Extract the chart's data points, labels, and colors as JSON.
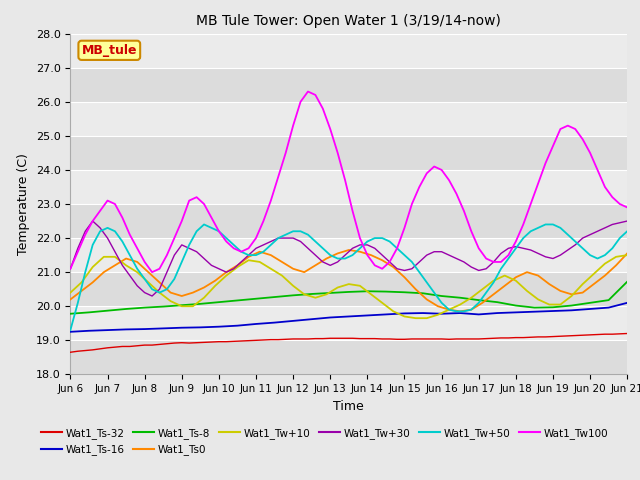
{
  "title": "MB Tule Tower: Open Water 1 (3/19/14-now)",
  "xlabel": "Time",
  "ylabel": "Temperature (C)",
  "ylim": [
    18.0,
    28.0
  ],
  "yticks": [
    18.0,
    19.0,
    20.0,
    21.0,
    22.0,
    23.0,
    24.0,
    25.0,
    26.0,
    27.0,
    28.0
  ],
  "xtick_labels": [
    "Jun 6",
    "Jun 7",
    "Jun 8",
    "Jun 9",
    "Jun 10",
    "Jun 11",
    "Jun 12",
    "Jun 13",
    "Jun 14",
    "Jun 15",
    "Jun 16",
    "Jun 17",
    "Jun 18",
    "Jun 19",
    "Jun 20",
    "Jun 21"
  ],
  "background_color": "#e8e8e8",
  "band_colors": [
    "#dcdcdc",
    "#ebebeb"
  ],
  "grid_color": "#ffffff",
  "series": [
    {
      "name": "Wat1_Ts-32",
      "color": "#dd0000",
      "linewidth": 1.0,
      "zorder": 3,
      "x": [
        0,
        0.2,
        0.4,
        0.6,
        0.8,
        1.0,
        1.2,
        1.4,
        1.6,
        1.8,
        2.0,
        2.2,
        2.4,
        2.6,
        2.8,
        3.0,
        3.2,
        3.4,
        3.6,
        3.8,
        4.0,
        4.2,
        4.4,
        4.6,
        4.8,
        5.0,
        5.2,
        5.4,
        5.6,
        5.8,
        6.0,
        6.2,
        6.4,
        6.6,
        6.8,
        7.0,
        7.2,
        7.4,
        7.6,
        7.8,
        8.0,
        8.2,
        8.4,
        8.6,
        8.8,
        9.0,
        9.2,
        9.4,
        9.6,
        9.8,
        10.0,
        10.2,
        10.4,
        10.6,
        10.8,
        11.0,
        11.2,
        11.4,
        11.6,
        11.8,
        12.0,
        12.2,
        12.4,
        12.6,
        12.8,
        13.0,
        13.2,
        13.4,
        13.6,
        13.8,
        14.0,
        14.2,
        14.4,
        14.6,
        14.8,
        15.0
      ],
      "y": [
        18.65,
        18.68,
        18.7,
        18.72,
        18.75,
        18.78,
        18.8,
        18.82,
        18.82,
        18.84,
        18.86,
        18.86,
        18.88,
        18.9,
        18.92,
        18.93,
        18.92,
        18.93,
        18.94,
        18.95,
        18.96,
        18.96,
        18.97,
        18.98,
        18.99,
        19.0,
        19.01,
        19.02,
        19.02,
        19.03,
        19.04,
        19.04,
        19.04,
        19.05,
        19.05,
        19.06,
        19.06,
        19.06,
        19.06,
        19.05,
        19.05,
        19.05,
        19.04,
        19.04,
        19.03,
        19.03,
        19.04,
        19.04,
        19.04,
        19.04,
        19.04,
        19.03,
        19.04,
        19.04,
        19.04,
        19.04,
        19.05,
        19.06,
        19.07,
        19.07,
        19.08,
        19.08,
        19.09,
        19.1,
        19.1,
        19.11,
        19.12,
        19.13,
        19.14,
        19.15,
        19.16,
        19.17,
        19.18,
        19.18,
        19.19,
        19.2
      ]
    },
    {
      "name": "Wat1_Ts-16",
      "color": "#0000cc",
      "linewidth": 1.3,
      "zorder": 4,
      "x": [
        0,
        0.5,
        1.0,
        1.5,
        2.0,
        2.5,
        3.0,
        3.5,
        4.0,
        4.5,
        5.0,
        5.5,
        6.0,
        6.5,
        7.0,
        7.5,
        8.0,
        8.5,
        9.0,
        9.5,
        10.0,
        10.5,
        11.0,
        11.5,
        12.0,
        12.5,
        13.0,
        13.5,
        14.0,
        14.5,
        15.0
      ],
      "y": [
        19.25,
        19.28,
        19.3,
        19.32,
        19.33,
        19.35,
        19.37,
        19.38,
        19.4,
        19.43,
        19.48,
        19.52,
        19.57,
        19.62,
        19.67,
        19.7,
        19.73,
        19.76,
        19.79,
        19.8,
        19.78,
        19.8,
        19.76,
        19.8,
        19.82,
        19.84,
        19.86,
        19.88,
        19.92,
        19.96,
        20.1
      ]
    },
    {
      "name": "Wat1_Ts-8",
      "color": "#00bb00",
      "linewidth": 1.3,
      "zorder": 5,
      "x": [
        0,
        0.5,
        1.0,
        1.5,
        2.0,
        2.5,
        3.0,
        3.5,
        4.0,
        4.5,
        5.0,
        5.5,
        6.0,
        6.5,
        7.0,
        7.5,
        8.0,
        8.5,
        9.0,
        9.5,
        10.0,
        10.5,
        11.0,
        11.5,
        12.0,
        12.5,
        13.0,
        13.5,
        14.0,
        14.5,
        15.0
      ],
      "y": [
        19.78,
        19.82,
        19.87,
        19.92,
        19.96,
        19.99,
        20.03,
        20.07,
        20.12,
        20.17,
        20.22,
        20.27,
        20.32,
        20.36,
        20.39,
        20.42,
        20.44,
        20.43,
        20.41,
        20.38,
        20.3,
        20.25,
        20.18,
        20.12,
        20.02,
        19.96,
        19.97,
        20.02,
        20.1,
        20.18,
        20.72
      ]
    },
    {
      "name": "Wat1_Ts0",
      "color": "#ff8800",
      "linewidth": 1.3,
      "zorder": 6,
      "x": [
        0,
        0.3,
        0.6,
        0.9,
        1.2,
        1.5,
        1.8,
        2.1,
        2.4,
        2.7,
        3.0,
        3.3,
        3.6,
        3.9,
        4.2,
        4.5,
        4.8,
        5.1,
        5.4,
        5.7,
        6.0,
        6.3,
        6.6,
        6.9,
        7.2,
        7.5,
        7.8,
        8.1,
        8.4,
        8.7,
        9.0,
        9.3,
        9.6,
        9.9,
        10.2,
        10.5,
        10.8,
        11.1,
        11.4,
        11.7,
        12.0,
        12.3,
        12.6,
        12.9,
        13.2,
        13.5,
        13.8,
        14.1,
        14.4,
        14.7,
        15.0
      ],
      "y": [
        20.2,
        20.45,
        20.7,
        21.0,
        21.2,
        21.4,
        21.3,
        21.0,
        20.7,
        20.4,
        20.3,
        20.4,
        20.55,
        20.75,
        21.0,
        21.2,
        21.45,
        21.6,
        21.5,
        21.3,
        21.1,
        21.0,
        21.2,
        21.4,
        21.55,
        21.65,
        21.6,
        21.5,
        21.35,
        21.15,
        20.85,
        20.5,
        20.2,
        20.0,
        19.9,
        19.85,
        19.9,
        20.1,
        20.35,
        20.6,
        20.85,
        21.0,
        20.9,
        20.65,
        20.45,
        20.35,
        20.4,
        20.65,
        20.9,
        21.2,
        21.55
      ]
    },
    {
      "name": "Wat1_Tw+10",
      "color": "#cccc00",
      "linewidth": 1.3,
      "zorder": 7,
      "x": [
        0,
        0.3,
        0.6,
        0.9,
        1.2,
        1.5,
        1.8,
        2.1,
        2.4,
        2.7,
        3.0,
        3.3,
        3.6,
        3.9,
        4.2,
        4.5,
        4.8,
        5.1,
        5.4,
        5.7,
        6.0,
        6.3,
        6.6,
        6.9,
        7.2,
        7.5,
        7.8,
        8.1,
        8.4,
        8.7,
        9.0,
        9.3,
        9.6,
        9.9,
        10.2,
        10.5,
        10.8,
        11.1,
        11.4,
        11.7,
        12.0,
        12.3,
        12.6,
        12.9,
        13.2,
        13.5,
        13.8,
        14.1,
        14.4,
        14.7,
        15.0
      ],
      "y": [
        20.4,
        20.7,
        21.15,
        21.45,
        21.45,
        21.2,
        21.0,
        20.7,
        20.4,
        20.15,
        20.0,
        20.0,
        20.25,
        20.6,
        20.9,
        21.15,
        21.35,
        21.3,
        21.1,
        20.9,
        20.6,
        20.35,
        20.25,
        20.35,
        20.55,
        20.65,
        20.6,
        20.35,
        20.1,
        19.85,
        19.7,
        19.65,
        19.65,
        19.75,
        19.9,
        20.05,
        20.25,
        20.5,
        20.75,
        20.9,
        20.75,
        20.45,
        20.2,
        20.05,
        20.05,
        20.3,
        20.65,
        20.95,
        21.25,
        21.45,
        21.5
      ]
    },
    {
      "name": "Wat1_Tw+30",
      "color": "#9900aa",
      "linewidth": 1.0,
      "zorder": 8,
      "x": [
        0,
        0.2,
        0.4,
        0.6,
        0.8,
        1.0,
        1.2,
        1.4,
        1.6,
        1.8,
        2.0,
        2.2,
        2.4,
        2.6,
        2.8,
        3.0,
        3.2,
        3.4,
        3.6,
        3.8,
        4.0,
        4.2,
        4.4,
        4.6,
        4.8,
        5.0,
        5.2,
        5.4,
        5.6,
        5.8,
        6.0,
        6.2,
        6.4,
        6.6,
        6.8,
        7.0,
        7.2,
        7.4,
        7.6,
        7.8,
        8.0,
        8.2,
        8.4,
        8.6,
        8.8,
        9.0,
        9.2,
        9.4,
        9.6,
        9.8,
        10.0,
        10.2,
        10.4,
        10.6,
        10.8,
        11.0,
        11.2,
        11.4,
        11.6,
        11.8,
        12.0,
        12.2,
        12.4,
        12.6,
        12.8,
        13.0,
        13.2,
        13.4,
        13.6,
        13.8,
        14.0,
        14.2,
        14.4,
        14.6,
        14.8,
        15.0
      ],
      "y": [
        21.1,
        21.7,
        22.2,
        22.5,
        22.3,
        22.0,
        21.6,
        21.2,
        20.9,
        20.6,
        20.4,
        20.3,
        20.5,
        21.0,
        21.5,
        21.8,
        21.7,
        21.6,
        21.4,
        21.2,
        21.1,
        21.0,
        21.1,
        21.3,
        21.5,
        21.7,
        21.8,
        21.9,
        22.0,
        22.0,
        22.0,
        21.9,
        21.7,
        21.5,
        21.3,
        21.2,
        21.3,
        21.5,
        21.7,
        21.8,
        21.8,
        21.7,
        21.5,
        21.3,
        21.1,
        21.05,
        21.1,
        21.3,
        21.5,
        21.6,
        21.6,
        21.5,
        21.4,
        21.3,
        21.15,
        21.05,
        21.1,
        21.3,
        21.55,
        21.7,
        21.75,
        21.7,
        21.65,
        21.55,
        21.45,
        21.4,
        21.5,
        21.65,
        21.8,
        22.0,
        22.1,
        22.2,
        22.3,
        22.4,
        22.45,
        22.5
      ]
    },
    {
      "name": "Wat1_Tw+50",
      "color": "#00cccc",
      "linewidth": 1.3,
      "zorder": 9,
      "x": [
        0,
        0.2,
        0.4,
        0.6,
        0.8,
        1.0,
        1.2,
        1.4,
        1.6,
        1.8,
        2.0,
        2.2,
        2.4,
        2.6,
        2.8,
        3.0,
        3.2,
        3.4,
        3.6,
        3.8,
        4.0,
        4.2,
        4.4,
        4.6,
        4.8,
        5.0,
        5.2,
        5.4,
        5.6,
        5.8,
        6.0,
        6.2,
        6.4,
        6.6,
        6.8,
        7.0,
        7.2,
        7.4,
        7.6,
        7.8,
        8.0,
        8.2,
        8.4,
        8.6,
        8.8,
        9.0,
        9.2,
        9.4,
        9.6,
        9.8,
        10.0,
        10.2,
        10.4,
        10.6,
        10.8,
        11.0,
        11.2,
        11.4,
        11.6,
        11.8,
        12.0,
        12.2,
        12.4,
        12.6,
        12.8,
        13.0,
        13.2,
        13.4,
        13.6,
        13.8,
        14.0,
        14.2,
        14.4,
        14.6,
        14.8,
        15.0
      ],
      "y": [
        19.3,
        20.1,
        21.0,
        21.8,
        22.2,
        22.3,
        22.2,
        21.9,
        21.5,
        21.1,
        20.8,
        20.5,
        20.4,
        20.5,
        20.8,
        21.3,
        21.8,
        22.2,
        22.4,
        22.3,
        22.2,
        22.0,
        21.8,
        21.6,
        21.5,
        21.5,
        21.6,
        21.8,
        22.0,
        22.1,
        22.2,
        22.2,
        22.1,
        21.9,
        21.7,
        21.5,
        21.4,
        21.4,
        21.5,
        21.7,
        21.9,
        22.0,
        22.0,
        21.9,
        21.7,
        21.5,
        21.3,
        21.0,
        20.7,
        20.4,
        20.1,
        19.9,
        19.85,
        19.85,
        19.9,
        20.1,
        20.4,
        20.7,
        21.1,
        21.4,
        21.7,
        22.0,
        22.2,
        22.3,
        22.4,
        22.4,
        22.3,
        22.1,
        21.9,
        21.7,
        21.5,
        21.4,
        21.5,
        21.7,
        22.0,
        22.2
      ]
    },
    {
      "name": "Wat1_Tw100",
      "color": "#ff00ff",
      "linewidth": 1.3,
      "zorder": 10,
      "x": [
        0,
        0.2,
        0.4,
        0.6,
        0.8,
        1.0,
        1.2,
        1.4,
        1.6,
        1.8,
        2.0,
        2.2,
        2.4,
        2.6,
        2.8,
        3.0,
        3.2,
        3.4,
        3.6,
        3.8,
        4.0,
        4.2,
        4.4,
        4.6,
        4.8,
        5.0,
        5.2,
        5.4,
        5.6,
        5.8,
        6.0,
        6.2,
        6.4,
        6.6,
        6.8,
        7.0,
        7.2,
        7.4,
        7.6,
        7.8,
        8.0,
        8.2,
        8.4,
        8.6,
        8.8,
        9.0,
        9.2,
        9.4,
        9.6,
        9.8,
        10.0,
        10.2,
        10.4,
        10.6,
        10.8,
        11.0,
        11.2,
        11.4,
        11.6,
        11.8,
        12.0,
        12.2,
        12.4,
        12.6,
        12.8,
        13.0,
        13.2,
        13.4,
        13.6,
        13.8,
        14.0,
        14.2,
        14.4,
        14.6,
        14.8,
        15.0
      ],
      "y": [
        21.1,
        21.6,
        22.1,
        22.5,
        22.8,
        23.1,
        23.0,
        22.6,
        22.1,
        21.7,
        21.3,
        21.0,
        21.1,
        21.5,
        22.0,
        22.5,
        23.1,
        23.2,
        23.0,
        22.6,
        22.2,
        21.9,
        21.7,
        21.6,
        21.7,
        22.0,
        22.5,
        23.1,
        23.8,
        24.5,
        25.3,
        26.0,
        26.3,
        26.2,
        25.8,
        25.2,
        24.5,
        23.7,
        22.8,
        22.0,
        21.5,
        21.2,
        21.1,
        21.3,
        21.7,
        22.3,
        23.0,
        23.5,
        23.9,
        24.1,
        24.0,
        23.7,
        23.3,
        22.8,
        22.2,
        21.7,
        21.4,
        21.3,
        21.3,
        21.5,
        21.9,
        22.4,
        23.0,
        23.6,
        24.2,
        24.7,
        25.2,
        25.3,
        25.2,
        24.9,
        24.5,
        24.0,
        23.5,
        23.2,
        23.0,
        22.9
      ]
    }
  ],
  "legend": [
    {
      "name": "Wat1_Ts-32",
      "color": "#dd0000"
    },
    {
      "name": "Wat1_Ts-16",
      "color": "#0000cc"
    },
    {
      "name": "Wat1_Ts-8",
      "color": "#00bb00"
    },
    {
      "name": "Wat1_Ts0",
      "color": "#ff8800"
    },
    {
      "name": "Wat1_Tw+10",
      "color": "#cccc00"
    },
    {
      "name": "Wat1_Tw+30",
      "color": "#9900aa"
    },
    {
      "name": "Wat1_Tw+50",
      "color": "#00cccc"
    },
    {
      "name": "Wat1_Tw100",
      "color": "#ff00ff"
    }
  ],
  "text_box": {
    "label": "MB_tule",
    "facecolor": "#ffff99",
    "edgecolor": "#cc8800",
    "textcolor": "#cc0000",
    "fontsize": 9,
    "fontweight": "bold"
  }
}
